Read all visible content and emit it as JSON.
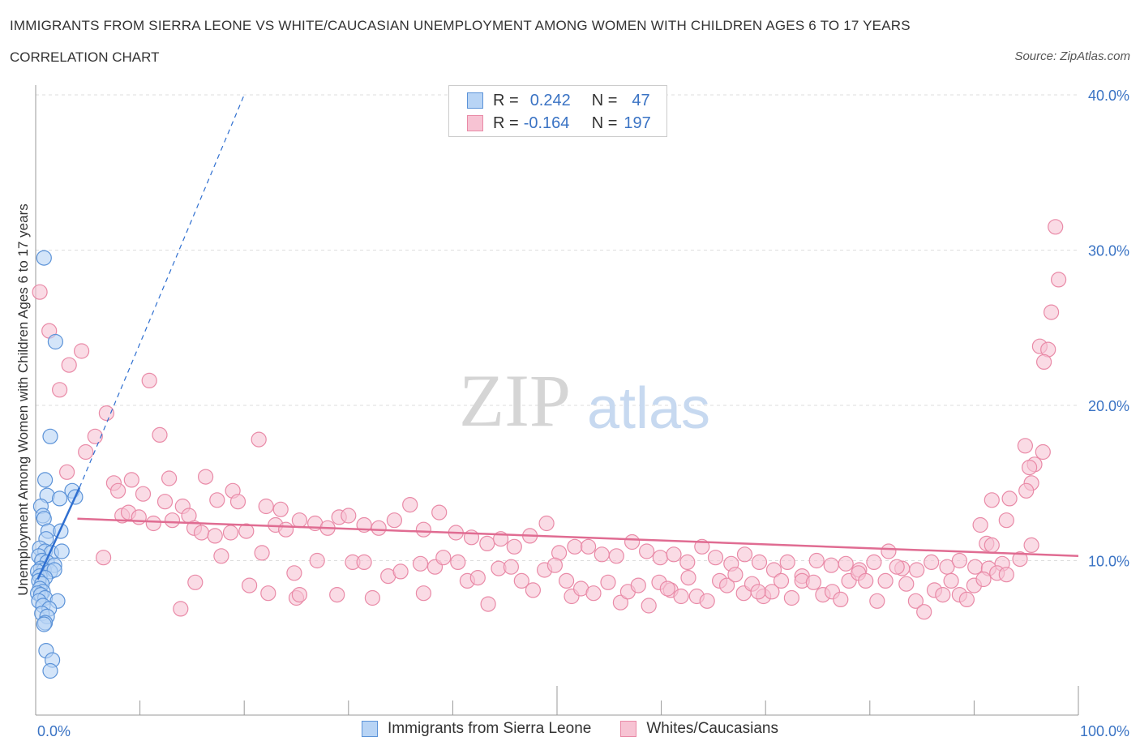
{
  "header": {
    "title": "IMMIGRANTS FROM SIERRA LEONE VS WHITE/CAUCASIAN UNEMPLOYMENT AMONG WOMEN WITH CHILDREN AGES 6 TO 17 YEARS",
    "subtitle": "CORRELATION CHART",
    "source": "Source: ZipAtlas.com"
  },
  "watermark": {
    "zip": "ZIP",
    "atlas": "atlas"
  },
  "legend": {
    "rows": [
      {
        "r_label": "R =",
        "r_value": "0.242",
        "n_label": "N =",
        "n_value": "47"
      },
      {
        "r_label": "R =",
        "r_value": "-0.164",
        "n_label": "N =",
        "n_value": "197"
      }
    ]
  },
  "colors": {
    "blue_fill": "#b8d4f5",
    "blue_stroke": "#5c93d8",
    "blue_line": "#2f6fd0",
    "pink_fill": "#f7c3d3",
    "pink_stroke": "#e98aa7",
    "pink_line": "#e06c92",
    "axis_label": "#3a73c4"
  },
  "chart_data": {
    "type": "scatter",
    "title": "IMMIGRANTS FROM SIERRA LEONE VS WHITE/CAUCASIAN UNEMPLOYMENT AMONG WOMEN WITH CHILDREN AGES 6 TO 17 YEARS",
    "xlabel": "",
    "ylabel": "Unemployment Among Women with Children Ages 6 to 17 years",
    "xlim": [
      0,
      100
    ],
    "ylim": [
      0,
      40
    ],
    "x_tick_labels": [
      "0.0%",
      "100.0%"
    ],
    "y_ticks": [
      10,
      20,
      30,
      40
    ],
    "y_tick_labels": [
      "10.0%",
      "20.0%",
      "30.0%",
      "40.0%"
    ],
    "grid": true,
    "legend_position": "top-center",
    "series": [
      {
        "name": "Immigrants from Sierra Leone",
        "color": "blue",
        "R": 0.242,
        "N": 47,
        "trend_solid": [
          [
            0.2,
            8.8
          ],
          [
            4.2,
            14.7
          ]
        ],
        "trend_dashed": [
          [
            4.2,
            14.7
          ],
          [
            20,
            40
          ]
        ],
        "points": [
          [
            0.8,
            29.5
          ],
          [
            1.9,
            24.1
          ],
          [
            1.4,
            18.0
          ],
          [
            0.9,
            15.2
          ],
          [
            1.1,
            14.2
          ],
          [
            2.3,
            14.0
          ],
          [
            3.5,
            14.5
          ],
          [
            3.8,
            14.1
          ],
          [
            0.5,
            13.5
          ],
          [
            0.7,
            12.9
          ],
          [
            0.8,
            12.7
          ],
          [
            1.2,
            11.9
          ],
          [
            2.4,
            11.9
          ],
          [
            1.0,
            11.4
          ],
          [
            0.4,
            10.8
          ],
          [
            0.9,
            10.6
          ],
          [
            1.5,
            10.5
          ],
          [
            2.5,
            10.6
          ],
          [
            0.3,
            10.3
          ],
          [
            0.6,
            10.0
          ],
          [
            1.1,
            9.9
          ],
          [
            1.8,
            9.7
          ],
          [
            0.5,
            9.5
          ],
          [
            0.8,
            9.4
          ],
          [
            0.2,
            9.3
          ],
          [
            1.4,
            9.3
          ],
          [
            1.8,
            9.4
          ],
          [
            0.4,
            9.0
          ],
          [
            0.9,
            8.9
          ],
          [
            0.3,
            8.7
          ],
          [
            0.6,
            8.5
          ],
          [
            0.4,
            8.2
          ],
          [
            0.7,
            8.0
          ],
          [
            0.2,
            7.9
          ],
          [
            0.5,
            7.8
          ],
          [
            0.9,
            7.6
          ],
          [
            0.3,
            7.4
          ],
          [
            2.1,
            7.4
          ],
          [
            0.7,
            7.1
          ],
          [
            1.3,
            6.9
          ],
          [
            0.6,
            6.6
          ],
          [
            1.1,
            6.4
          ],
          [
            0.9,
            6.0
          ],
          [
            0.8,
            5.9
          ],
          [
            1.0,
            4.2
          ],
          [
            1.6,
            3.6
          ],
          [
            1.4,
            2.9
          ]
        ]
      },
      {
        "name": "Whites/Caucasians",
        "color": "pink",
        "R": -0.164,
        "N": 197,
        "trend_solid": [
          [
            4,
            12.7
          ],
          [
            100,
            10.3
          ]
        ],
        "points": [
          [
            0.4,
            27.3
          ],
          [
            1.3,
            24.8
          ],
          [
            4.4,
            23.5
          ],
          [
            3.2,
            22.6
          ],
          [
            2.3,
            21.0
          ],
          [
            10.9,
            21.6
          ],
          [
            6.8,
            19.5
          ],
          [
            5.7,
            18.0
          ],
          [
            11.9,
            18.1
          ],
          [
            21.4,
            17.8
          ],
          [
            4.8,
            17.0
          ],
          [
            3.0,
            15.7
          ],
          [
            7.5,
            15.0
          ],
          [
            7.9,
            14.5
          ],
          [
            9.2,
            15.2
          ],
          [
            12.8,
            15.3
          ],
          [
            16.3,
            15.4
          ],
          [
            18.9,
            14.5
          ],
          [
            10.3,
            14.3
          ],
          [
            12.4,
            13.8
          ],
          [
            14.1,
            13.5
          ],
          [
            17.4,
            13.9
          ],
          [
            19.4,
            13.8
          ],
          [
            22.1,
            13.5
          ],
          [
            23.5,
            13.3
          ],
          [
            8.3,
            12.9
          ],
          [
            8.9,
            13.1
          ],
          [
            9.9,
            12.8
          ],
          [
            11.3,
            12.4
          ],
          [
            13.1,
            12.6
          ],
          [
            14.7,
            12.9
          ],
          [
            15.2,
            12.1
          ],
          [
            15.9,
            11.8
          ],
          [
            17.2,
            11.6
          ],
          [
            18.7,
            11.8
          ],
          [
            20.2,
            11.9
          ],
          [
            23.0,
            12.3
          ],
          [
            24.0,
            12.0
          ],
          [
            25.3,
            12.6
          ],
          [
            26.8,
            12.4
          ],
          [
            28.0,
            12.1
          ],
          [
            29.1,
            12.8
          ],
          [
            30.0,
            12.9
          ],
          [
            31.5,
            12.3
          ],
          [
            32.9,
            12.1
          ],
          [
            34.4,
            12.6
          ],
          [
            35.9,
            13.6
          ],
          [
            37.2,
            12.0
          ],
          [
            38.7,
            13.1
          ],
          [
            40.3,
            11.8
          ],
          [
            41.8,
            11.5
          ],
          [
            43.3,
            11.1
          ],
          [
            44.6,
            11.4
          ],
          [
            45.9,
            10.9
          ],
          [
            47.4,
            11.6
          ],
          [
            49.0,
            12.4
          ],
          [
            50.2,
            10.5
          ],
          [
            51.7,
            10.9
          ],
          [
            53.0,
            10.9
          ],
          [
            54.3,
            10.4
          ],
          [
            55.7,
            10.3
          ],
          [
            57.2,
            11.2
          ],
          [
            58.6,
            10.6
          ],
          [
            59.9,
            10.2
          ],
          [
            61.2,
            10.4
          ],
          [
            62.5,
            9.9
          ],
          [
            63.9,
            10.9
          ],
          [
            65.2,
            10.2
          ],
          [
            66.7,
            9.8
          ],
          [
            68.0,
            10.4
          ],
          [
            69.4,
            9.9
          ],
          [
            70.8,
            9.4
          ],
          [
            72.1,
            9.9
          ],
          [
            73.5,
            9.0
          ],
          [
            74.9,
            10.0
          ],
          [
            76.3,
            9.7
          ],
          [
            77.7,
            9.8
          ],
          [
            79.0,
            9.4
          ],
          [
            80.4,
            9.9
          ],
          [
            81.8,
            10.6
          ],
          [
            83.1,
            9.5
          ],
          [
            84.5,
            9.4
          ],
          [
            85.9,
            9.9
          ],
          [
            87.4,
            9.6
          ],
          [
            88.6,
            10.0
          ],
          [
            90.1,
            9.6
          ],
          [
            91.4,
            9.5
          ],
          [
            92.7,
            9.8
          ],
          [
            94.4,
            10.1
          ],
          [
            95.5,
            11.0
          ],
          [
            96.6,
            17.0
          ],
          [
            95.8,
            16.2
          ],
          [
            94.9,
            17.4
          ],
          [
            95.3,
            16.0
          ],
          [
            95.5,
            15.0
          ],
          [
            95.0,
            14.5
          ],
          [
            93.4,
            14.0
          ],
          [
            91.7,
            13.9
          ],
          [
            93.1,
            12.6
          ],
          [
            90.6,
            12.3
          ],
          [
            91.2,
            11.1
          ],
          [
            91.7,
            11.0
          ],
          [
            97.8,
            31.5
          ],
          [
            98.1,
            28.1
          ],
          [
            97.4,
            26.0
          ],
          [
            96.3,
            23.8
          ],
          [
            97.1,
            23.6
          ],
          [
            96.7,
            22.8
          ],
          [
            6.5,
            10.2
          ],
          [
            15.3,
            8.6
          ],
          [
            13.9,
            6.9
          ],
          [
            17.8,
            10.3
          ],
          [
            20.5,
            8.4
          ],
          [
            22.3,
            7.9
          ],
          [
            24.8,
            9.2
          ],
          [
            27.0,
            10.0
          ],
          [
            28.9,
            7.8
          ],
          [
            30.4,
            9.9
          ],
          [
            31.5,
            9.9
          ],
          [
            32.3,
            7.6
          ],
          [
            33.8,
            9.0
          ],
          [
            35.0,
            9.3
          ],
          [
            36.9,
            9.8
          ],
          [
            37.2,
            7.9
          ],
          [
            38.3,
            9.6
          ],
          [
            39.1,
            10.2
          ],
          [
            40.5,
            9.9
          ],
          [
            41.4,
            8.7
          ],
          [
            42.4,
            8.9
          ],
          [
            43.4,
            7.2
          ],
          [
            44.4,
            9.5
          ],
          [
            45.6,
            9.6
          ],
          [
            46.6,
            8.7
          ],
          [
            47.7,
            8.1
          ],
          [
            48.8,
            9.4
          ],
          [
            49.8,
            9.7
          ],
          [
            50.9,
            8.7
          ],
          [
            51.4,
            7.7
          ],
          [
            52.3,
            8.2
          ],
          [
            53.5,
            7.9
          ],
          [
            54.9,
            8.6
          ],
          [
            56.1,
            7.3
          ],
          [
            56.8,
            8.0
          ],
          [
            57.8,
            8.4
          ],
          [
            58.8,
            7.1
          ],
          [
            59.8,
            8.6
          ],
          [
            60.9,
            8.1
          ],
          [
            61.9,
            7.7
          ],
          [
            62.6,
            8.9
          ],
          [
            63.4,
            7.7
          ],
          [
            64.4,
            7.4
          ],
          [
            65.6,
            8.7
          ],
          [
            66.3,
            8.4
          ],
          [
            67.1,
            9.1
          ],
          [
            67.9,
            7.9
          ],
          [
            68.7,
            8.5
          ],
          [
            69.8,
            7.7
          ],
          [
            70.6,
            8.0
          ],
          [
            71.5,
            8.7
          ],
          [
            72.5,
            7.6
          ],
          [
            73.5,
            8.7
          ],
          [
            74.6,
            8.6
          ],
          [
            75.5,
            7.8
          ],
          [
            76.4,
            8.0
          ],
          [
            77.2,
            7.5
          ],
          [
            78.0,
            8.7
          ],
          [
            78.9,
            9.2
          ],
          [
            79.6,
            8.7
          ],
          [
            80.7,
            7.4
          ],
          [
            81.5,
            8.7
          ],
          [
            82.6,
            9.6
          ],
          [
            83.5,
            8.5
          ],
          [
            84.4,
            7.4
          ],
          [
            85.2,
            6.7
          ],
          [
            86.2,
            8.1
          ],
          [
            87.0,
            7.8
          ],
          [
            87.8,
            8.7
          ],
          [
            88.6,
            7.8
          ],
          [
            89.3,
            7.5
          ],
          [
            90.0,
            8.4
          ],
          [
            90.9,
            8.8
          ],
          [
            92.2,
            9.2
          ],
          [
            93.1,
            9.1
          ],
          [
            25.0,
            7.6
          ],
          [
            25.3,
            7.8
          ],
          [
            21.7,
            10.5
          ],
          [
            60.6,
            8.2
          ],
          [
            69.3,
            8.0
          ]
        ]
      }
    ]
  }
}
